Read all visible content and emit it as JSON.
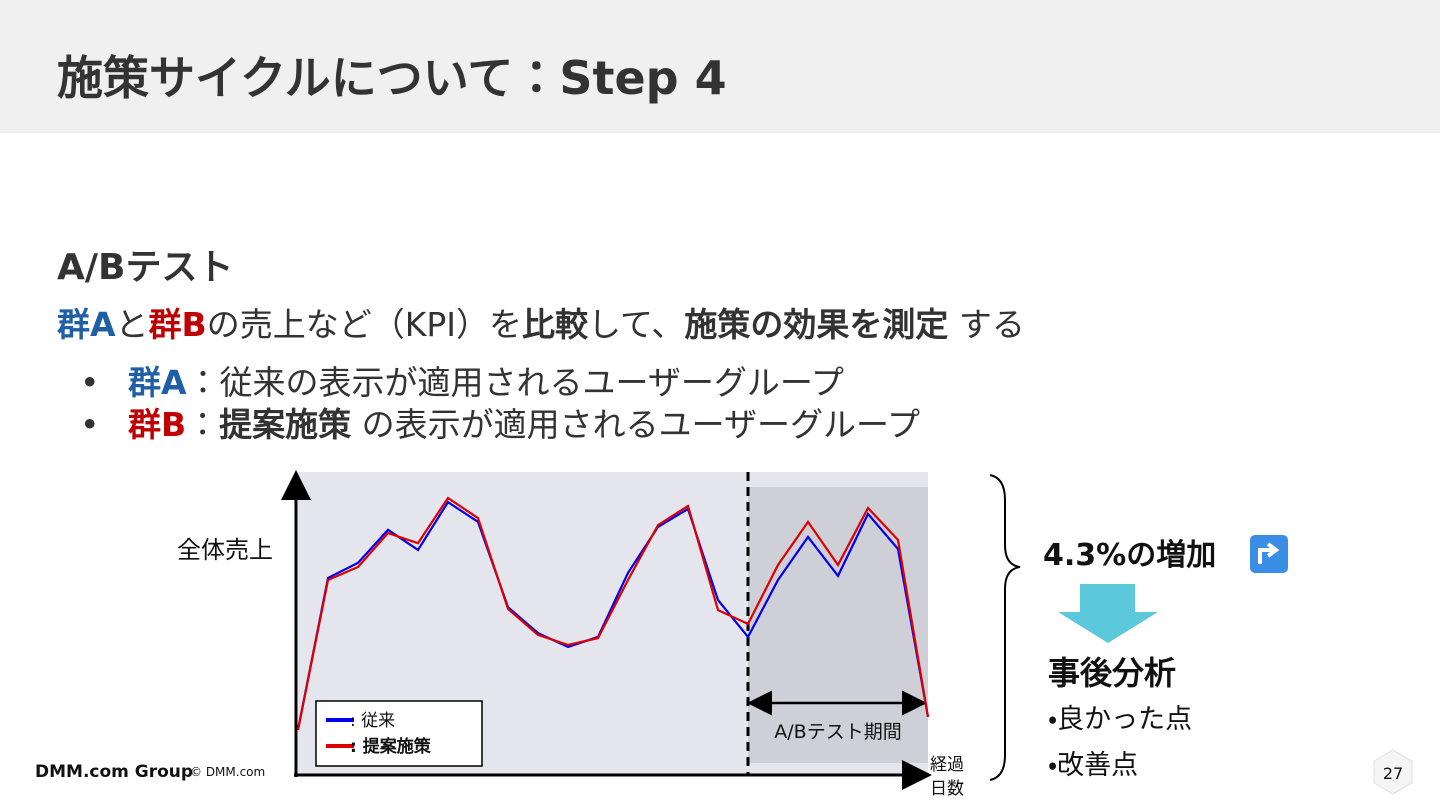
{
  "header": {
    "title": "施策サイクルについて：Step 4"
  },
  "section": {
    "heading": "A/Bテスト"
  },
  "description": [
    "群A",
    "と",
    "群B",
    "の売上など（KPI）を",
    "比較",
    "して、",
    "施策の効果を測定",
    " する"
  ],
  "bullets": [
    [
      "群A",
      "：従来の表示が適用されるユーザーグループ"
    ],
    [
      "群B",
      "：",
      "提案施策",
      " の表示が適用されるユーザーグループ"
    ]
  ],
  "chart_data": {
    "type": "line",
    "ylabel": "全体売上",
    "xlabel": [
      "経過",
      "日数"
    ],
    "x": [
      0,
      1,
      2,
      3,
      4,
      5,
      6,
      7,
      8,
      9,
      10,
      11,
      12,
      13,
      14,
      15,
      16,
      17,
      18,
      19,
      20,
      21
    ],
    "xlim": [
      0,
      21
    ],
    "ylim": [
      0,
      100
    ],
    "series": [
      {
        "name": ": 従来",
        "color": "#0000ee",
        "values": [
          15.3,
          66.8,
          71.9,
          83.1,
          76.3,
          92.5,
          85.8,
          56.9,
          48.1,
          43.4,
          46.8,
          68.5,
          84.1,
          90.2,
          59.3,
          46.8,
          66.1,
          80.7,
          67.5,
          88.5,
          76.6,
          19.7
        ]
      },
      {
        "name": ": 提案施策",
        "color": "#dd0000",
        "values": [
          15.3,
          66.1,
          70.5,
          82.0,
          78.6,
          93.9,
          87.1,
          56.3,
          47.5,
          44.1,
          46.4,
          66.1,
          84.7,
          91.2,
          55.9,
          51.2,
          71.2,
          85.8,
          71.2,
          90.5,
          79.7,
          19.7
        ]
      }
    ],
    "shaded_region": {
      "x": [
        15,
        21
      ],
      "label": "A/Bテスト期間"
    }
  },
  "result": {
    "headline": "4.3%の増加",
    "analysis_title": "事後分析",
    "items": [
      "・良かった点",
      "・改善点"
    ]
  },
  "footer": {
    "logo": "DMM.com Group",
    "copyright": "© DMM.com",
    "page": "27"
  }
}
